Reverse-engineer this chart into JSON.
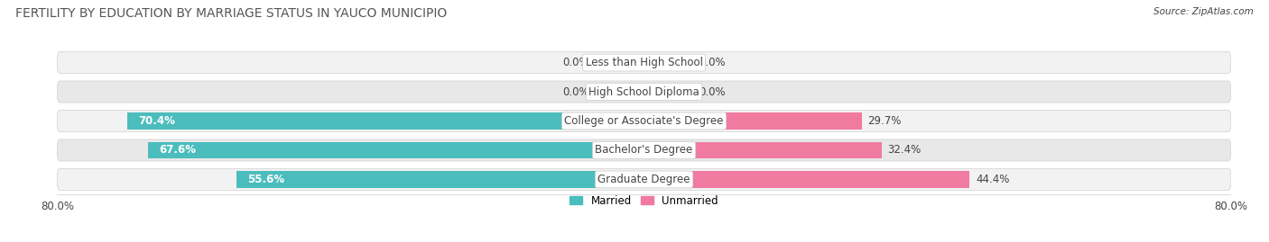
{
  "title": "FERTILITY BY EDUCATION BY MARRIAGE STATUS IN YAUCO MUNICIPIO",
  "source": "Source: ZipAtlas.com",
  "categories": [
    "Less than High School",
    "High School Diploma",
    "College or Associate's Degree",
    "Bachelor's Degree",
    "Graduate Degree"
  ],
  "married_values": [
    0.0,
    0.0,
    70.4,
    67.6,
    55.6
  ],
  "unmarried_values": [
    0.0,
    0.0,
    29.7,
    32.4,
    44.4
  ],
  "married_color": "#4bbdbd",
  "unmarried_color": "#f07aa0",
  "zero_married_color": "#85d0d8",
  "zero_unmarried_color": "#f5a0bc",
  "row_bg_light": "#f2f2f2",
  "row_bg_mid": "#e8e8e8",
  "row_border": "#d0d0d0",
  "xlim_left": -80.0,
  "xlim_right": 80.0,
  "zero_bar_width": 7.0,
  "label_color": "#444444",
  "white": "#ffffff",
  "title_color": "#555555",
  "title_fontsize": 10,
  "label_fontsize": 8.5,
  "category_fontsize": 8.5,
  "value_fontsize": 8.5,
  "legend_labels": [
    "Married",
    "Unmarried"
  ],
  "background_color": "#ffffff"
}
